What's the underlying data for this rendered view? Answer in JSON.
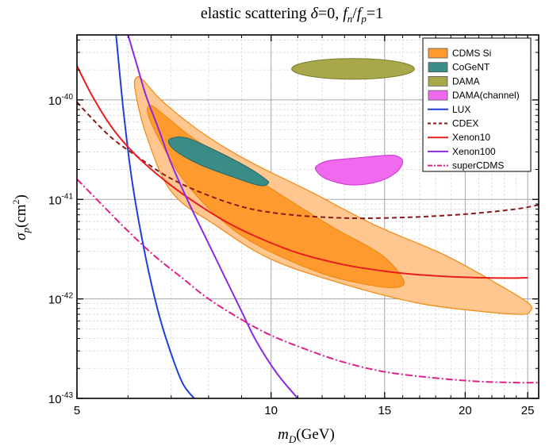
{
  "chart_data": {
    "type": "line",
    "title": "elastic scattering δ=0, f_n/f_p=1",
    "title_parts": [
      "elastic scattering ",
      "δ",
      "=0, ",
      "f",
      "n",
      "/",
      "f",
      "p",
      "=1"
    ],
    "xlabel": "m_D(GeV)",
    "xlabel_parts": [
      "m",
      "D",
      "(GeV)"
    ],
    "ylabel": "σ_p(cm²)",
    "ylabel_parts": [
      "σ",
      "p",
      "(cm",
      "2",
      ")"
    ],
    "x_scale": "log",
    "y_scale": "log",
    "xlim": [
      5,
      26
    ],
    "ylim": [
      1e-43,
      4.5e-40
    ],
    "x_ticks": [
      5,
      10,
      15,
      20,
      25
    ],
    "x_tick_labels": [
      "5",
      "10",
      "15",
      "20",
      "25"
    ],
    "y_ticks": [
      1e-43,
      1e-42,
      1e-41,
      1e-40
    ],
    "y_tick_labels": [
      {
        "base": "10",
        "exp": "-43"
      },
      {
        "base": "10",
        "exp": "-42"
      },
      {
        "base": "10",
        "exp": "-41"
      },
      {
        "base": "10",
        "exp": "-40"
      }
    ],
    "grid": true,
    "legend_position": "top-right",
    "legend": [
      {
        "label": "CDMS Si",
        "kind": "fill",
        "color": "#FF9A2E"
      },
      {
        "label": "CoGeNT",
        "kind": "fill",
        "color": "#3A8C86"
      },
      {
        "label": "DAMA",
        "kind": "fill",
        "color": "#A8A84A"
      },
      {
        "label": "DAMA(channel)",
        "kind": "fill",
        "color": "#F06AF0"
      },
      {
        "label": "LUX",
        "kind": "line",
        "color": "#1F3FD8",
        "dash": "solid"
      },
      {
        "label": "CDEX",
        "kind": "line",
        "color": "#8B1A1A",
        "dash": "dash"
      },
      {
        "label": "Xenon10",
        "kind": "line",
        "color": "#E81E1E",
        "dash": "solid"
      },
      {
        "label": "Xenon100",
        "kind": "line",
        "color": "#8A2BE2",
        "dash": "solid"
      },
      {
        "label": "superCDMS",
        "kind": "line",
        "color": "#E0208A",
        "dash": "dashdot"
      }
    ],
    "regions": [
      {
        "name": "CDMS Si",
        "level": "outer",
        "color": "#FFC690",
        "x": [
          6.2,
          6.35,
          6.7,
          7.3,
          8.2,
          9.5,
          11.5,
          14.5,
          18.5,
          22.5,
          25.1,
          25.2,
          24.5,
          21.5,
          17,
          13,
          10,
          8.2,
          7.0,
          6.4,
          6.15
        ],
        "y": [
          1.7e-40,
          1.55e-40,
          1.05e-40,
          6.5e-41,
          3.8e-41,
          2.2e-41,
          1.2e-41,
          5.5e-42,
          2.8e-42,
          1.4e-42,
          9e-43,
          7.5e-43,
          7e-43,
          7.4e-43,
          9e-43,
          1.4e-42,
          2.5e-42,
          5.5e-42,
          1.2e-41,
          4.5e-41,
          1.3e-40
        ]
      },
      {
        "name": "CDMS Si",
        "level": "inner",
        "color": "#FF9A2E",
        "x": [
          6.5,
          6.8,
          7.5,
          8.8,
          10.5,
          12.5,
          14.8,
          16.0,
          15.8,
          14.5,
          12.0,
          9.5,
          8.2,
          7.3,
          6.8,
          6.45
        ],
        "y": [
          8.8e-41,
          7.2e-41,
          4.3e-41,
          2.2e-41,
          1.05e-41,
          5.2e-42,
          2.8e-42,
          1.6e-42,
          1.32e-42,
          1.35e-42,
          1.8e-42,
          3.5e-42,
          7e-42,
          1.6e-41,
          3.4e-41,
          7e-41
        ]
      },
      {
        "name": "CoGeNT",
        "color": "#3A8C86",
        "x": [
          7.0,
          7.4,
          8.2,
          9.2,
          9.8,
          9.9,
          9.6,
          8.8,
          7.8,
          7.2,
          6.95
        ],
        "y": [
          4.1e-41,
          4.15e-41,
          3.1e-41,
          2.1e-41,
          1.6e-41,
          1.45e-41,
          1.38e-41,
          1.65e-41,
          2.2e-41,
          2.9e-41,
          3.6e-41
        ]
      },
      {
        "name": "DAMA",
        "color": "#A8A84A",
        "center": [
          13.4,
          2.05e-40
        ],
        "x_half_factor": 1.245,
        "y_half_factor": 1.27
      },
      {
        "name": "DAMA(channel)",
        "color": "#F06AF0",
        "x": [
          11.8,
          12.3,
          13.5,
          14.8,
          15.6,
          16.0,
          15.6,
          14.6,
          13.3,
          12.2,
          11.75
        ],
        "y": [
          2.2e-41,
          2.45e-41,
          2.6e-41,
          2.75e-41,
          2.75e-41,
          2.4e-41,
          1.85e-41,
          1.5e-41,
          1.4e-41,
          1.6e-41,
          1.95e-41
        ]
      }
    ],
    "series": [
      {
        "name": "LUX",
        "color": "#1F3FD8",
        "dash": "solid",
        "x": [
          5.75,
          5.9,
          6.1,
          6.4,
          6.7,
          7.0,
          7.3,
          7.6
        ],
        "y": [
          4.5e-40,
          8e-41,
          1.4e-41,
          2.5e-42,
          7e-43,
          2.8e-43,
          1.4e-43,
          1e-43
        ]
      },
      {
        "name": "CDEX",
        "color": "#8B1A1A",
        "dash": "dash",
        "x": [
          5.0,
          5.3,
          5.7,
          6.2,
          6.8,
          7.5,
          8.5,
          9.5,
          11,
          13,
          15,
          18,
          21,
          24,
          26
        ],
        "y": [
          9.5e-41,
          6.3e-41,
          4e-41,
          2.7e-41,
          1.8e-41,
          1.3e-41,
          9.5e-42,
          7.8e-42,
          6.9e-42,
          6.5e-42,
          6.5e-42,
          6.8e-42,
          7.3e-42,
          8e-42,
          8.8e-42
        ]
      },
      {
        "name": "Xenon10",
        "color": "#E81E1E",
        "dash": "solid",
        "x": [
          5.0,
          5.3,
          5.7,
          6.2,
          6.8,
          7.5,
          8.5,
          9.5,
          11,
          13,
          15,
          17,
          20,
          23,
          25
        ],
        "y": [
          2.2e-40,
          1.05e-40,
          5e-41,
          2.7e-41,
          1.6e-41,
          1e-41,
          6e-42,
          4.2e-42,
          2.9e-42,
          2.2e-42,
          1.9e-42,
          1.75e-42,
          1.65e-42,
          1.62e-42,
          1.63e-42
        ]
      },
      {
        "name": "Xenon100",
        "color": "#8A2BE2",
        "dash": "solid",
        "x": [
          6.0,
          6.2,
          6.4,
          6.7,
          7.0,
          7.5,
          8.0,
          8.5,
          9.0,
          9.5,
          10.2,
          11.0
        ],
        "y": [
          4.5e-40,
          2.2e-40,
          1.1e-40,
          5e-41,
          2.3e-41,
          8.5e-42,
          3.6e-42,
          1.6e-42,
          7.5e-43,
          3.7e-43,
          1.8e-43,
          1e-43
        ]
      },
      {
        "name": "superCDMS",
        "color": "#E0208A",
        "dash": "dashdot",
        "x": [
          5.0,
          5.5,
          6.0,
          6.6,
          7.3,
          8.0,
          9.0,
          10,
          11.5,
          13,
          15,
          18,
          21,
          24,
          26
        ],
        "y": [
          1.6e-41,
          8.5e-42,
          4.8e-42,
          2.7e-42,
          1.6e-42,
          1e-42,
          6.2e-43,
          4.3e-43,
          3e-43,
          2.3e-43,
          1.85e-43,
          1.6e-43,
          1.48e-43,
          1.44e-43,
          1.44e-43
        ]
      }
    ]
  }
}
